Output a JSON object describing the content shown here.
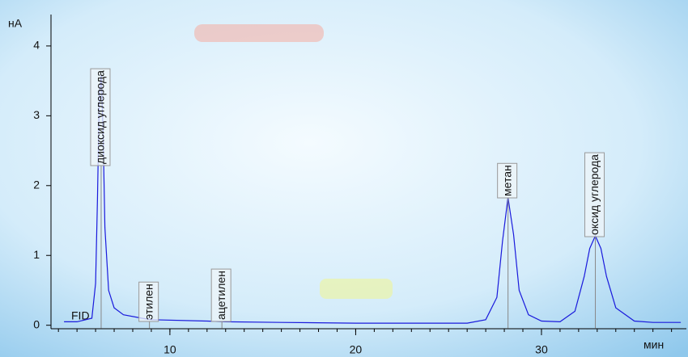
{
  "chart_data": {
    "type": "line",
    "detector": "FID",
    "y_label": "нА",
    "x_label": "мин",
    "color": "#1a1adc",
    "xlim": [
      3.6,
      37.8
    ],
    "ylim": [
      -0.05,
      4.45
    ],
    "xticks": [
      10,
      20,
      30
    ],
    "yticks": [
      0,
      1,
      2,
      3,
      4
    ],
    "x": [
      4.3,
      5,
      5.8,
      6.0,
      6.1,
      6.2,
      6.3,
      6.4,
      6.5,
      6.7,
      7.0,
      7.5,
      8.5,
      9,
      12,
      13,
      16,
      20,
      24,
      26,
      27,
      27.6,
      27.9,
      28.2,
      28.5,
      28.8,
      29.3,
      30,
      31,
      31.8,
      32.3,
      32.6,
      32.9,
      33.2,
      33.5,
      34,
      35,
      36,
      37.5
    ],
    "values": [
      0.05,
      0.05,
      0.1,
      0.6,
      1.8,
      3.3,
      3.58,
      2.8,
      1.4,
      0.5,
      0.25,
      0.15,
      0.1,
      0.08,
      0.06,
      0.05,
      0.04,
      0.03,
      0.03,
      0.03,
      0.08,
      0.4,
      1.2,
      1.83,
      1.3,
      0.5,
      0.15,
      0.06,
      0.05,
      0.2,
      0.7,
      1.1,
      1.28,
      1.1,
      0.7,
      0.25,
      0.06,
      0.04,
      0.04
    ],
    "peaks": [
      {
        "label": "диоксид углерода",
        "time": 6.3
      },
      {
        "label": "этилен",
        "time": 8.9
      },
      {
        "label": "ацетилен",
        "time": 12.8
      },
      {
        "label": "метан",
        "time": 28.2
      },
      {
        "label": "оксид углерода",
        "time": 32.9
      }
    ]
  }
}
